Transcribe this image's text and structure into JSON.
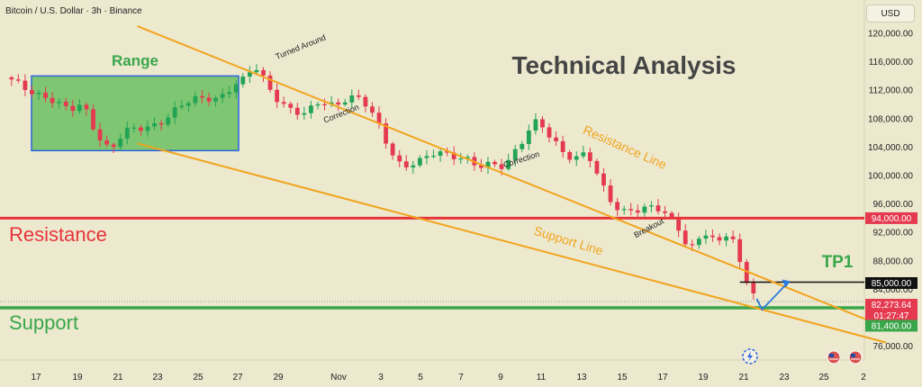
{
  "header": {
    "symbol_line": "Bitcoin / U.S. Dollar · 3h · Binance",
    "currency_button": "USD"
  },
  "colors": {
    "bg": "#ece9cf",
    "up": "#22a455",
    "down": "#e5394f",
    "resistance": "#e8343a",
    "support": "#3aa64a",
    "trend": "#f2a41c",
    "range_fill": "#6cbf62",
    "range_border": "#2b63e0",
    "range_text": "#3aa64a",
    "arrow": "#2b7be0",
    "tp": "#111111",
    "label_bg_dark": "#111111",
    "label_bg_red": "#e5394f",
    "label_bg_green": "#3aa64a"
  },
  "chart_data": {
    "type": "candlestick",
    "title": "Technical Analysis",
    "subtitle": "Bitcoin / U.S. Dollar · 3h · Binance",
    "ylim": [
      73000,
      123000
    ],
    "y_ticks": [
      "76,000.00",
      "80,000.00",
      "84,000.00",
      "88,000.00",
      "92,000.00",
      "96,000.00",
      "100,000.00",
      "104,000.00",
      "108,000.00",
      "112,000.00",
      "116,000.00",
      "120,000.00"
    ],
    "x_ticks": [
      "17",
      "19",
      "21",
      "23",
      "25",
      "27",
      "29",
      "Nov",
      "3",
      "5",
      "7",
      "9",
      "11",
      "13",
      "15",
      "17",
      "19",
      "21",
      "23",
      "25",
      "2"
    ],
    "price_path": [
      [
        0,
        113500
      ],
      [
        3,
        112000
      ],
      [
        6,
        111000
      ],
      [
        9,
        109000
      ],
      [
        11,
        110000
      ],
      [
        13,
        106000
      ],
      [
        15,
        103500
      ],
      [
        17,
        106000
      ],
      [
        19,
        106500
      ],
      [
        21,
        107000
      ],
      [
        23,
        108000
      ],
      [
        25,
        109500
      ],
      [
        27,
        110500
      ],
      [
        29,
        111000
      ],
      [
        31,
        111000
      ],
      [
        33,
        112500
      ],
      [
        35,
        113500
      ],
      [
        36,
        115500
      ],
      [
        37,
        114500
      ],
      [
        38,
        113000
      ],
      [
        39,
        111500
      ],
      [
        41,
        109500
      ],
      [
        43,
        108500
      ],
      [
        44,
        108500
      ],
      [
        45,
        110000
      ],
      [
        46,
        110500
      ],
      [
        48,
        110000
      ],
      [
        50,
        111000
      ],
      [
        52,
        110500
      ],
      [
        54,
        108000
      ],
      [
        56,
        104000
      ],
      [
        58,
        101000
      ],
      [
        59,
        101500
      ],
      [
        61,
        102000
      ],
      [
        63,
        103500
      ],
      [
        65,
        103000
      ],
      [
        67,
        102500
      ],
      [
        69,
        101000
      ],
      [
        71,
        101500
      ],
      [
        73,
        101500
      ],
      [
        74,
        103000
      ],
      [
        76,
        105500
      ],
      [
        77,
        107000
      ],
      [
        78,
        107500
      ],
      [
        79,
        106000
      ],
      [
        80,
        105000
      ],
      [
        82,
        103000
      ],
      [
        84,
        102500
      ],
      [
        85,
        103500
      ],
      [
        86,
        101000
      ],
      [
        88,
        97000
      ],
      [
        89,
        96000
      ],
      [
        90,
        95000
      ],
      [
        92,
        95500
      ],
      [
        93,
        95000
      ],
      [
        94,
        95500
      ],
      [
        96,
        95000
      ],
      [
        97,
        94000
      ],
      [
        98,
        93500
      ],
      [
        99,
        92000
      ],
      [
        100,
        89500
      ],
      [
        101,
        90500
      ],
      [
        102,
        92000
      ],
      [
        103,
        91500
      ],
      [
        104,
        90000
      ],
      [
        105,
        91000
      ],
      [
        106,
        92500
      ],
      [
        107,
        89500
      ],
      [
        108,
        86000
      ],
      [
        109,
        85000
      ],
      [
        110,
        82300
      ]
    ],
    "levels": [
      {
        "name": "Resistance",
        "value": 94000,
        "label": "94,000.00"
      },
      {
        "name": "Support",
        "value": 81400,
        "label": "81,400.00"
      },
      {
        "name": "TP1",
        "value": 85000,
        "label": "85,000.00"
      }
    ],
    "last_price": {
      "value": "82,273.64",
      "countdown": "01:27:47"
    },
    "annotations": [
      "Range",
      "Turned Around",
      "Correction",
      "Correction",
      "Resistance Line",
      "Support Line",
      "Breakout",
      "TP1",
      "Resistance",
      "Support"
    ],
    "range_box": {
      "y_top": 114000,
      "y_bottom": 103500,
      "label": "Range"
    },
    "trend_lines": [
      {
        "name": "Resistance Line",
        "from": [
          19,
          121000
        ],
        "to": [
          128,
          79000
        ]
      },
      {
        "name": "Support Line",
        "from": [
          19,
          104500
        ],
        "to": [
          129,
          76500
        ]
      }
    ],
    "arrow": {
      "from": [
        110.5,
        81400
      ],
      "to": [
        114.5,
        85000
      ]
    }
  }
}
